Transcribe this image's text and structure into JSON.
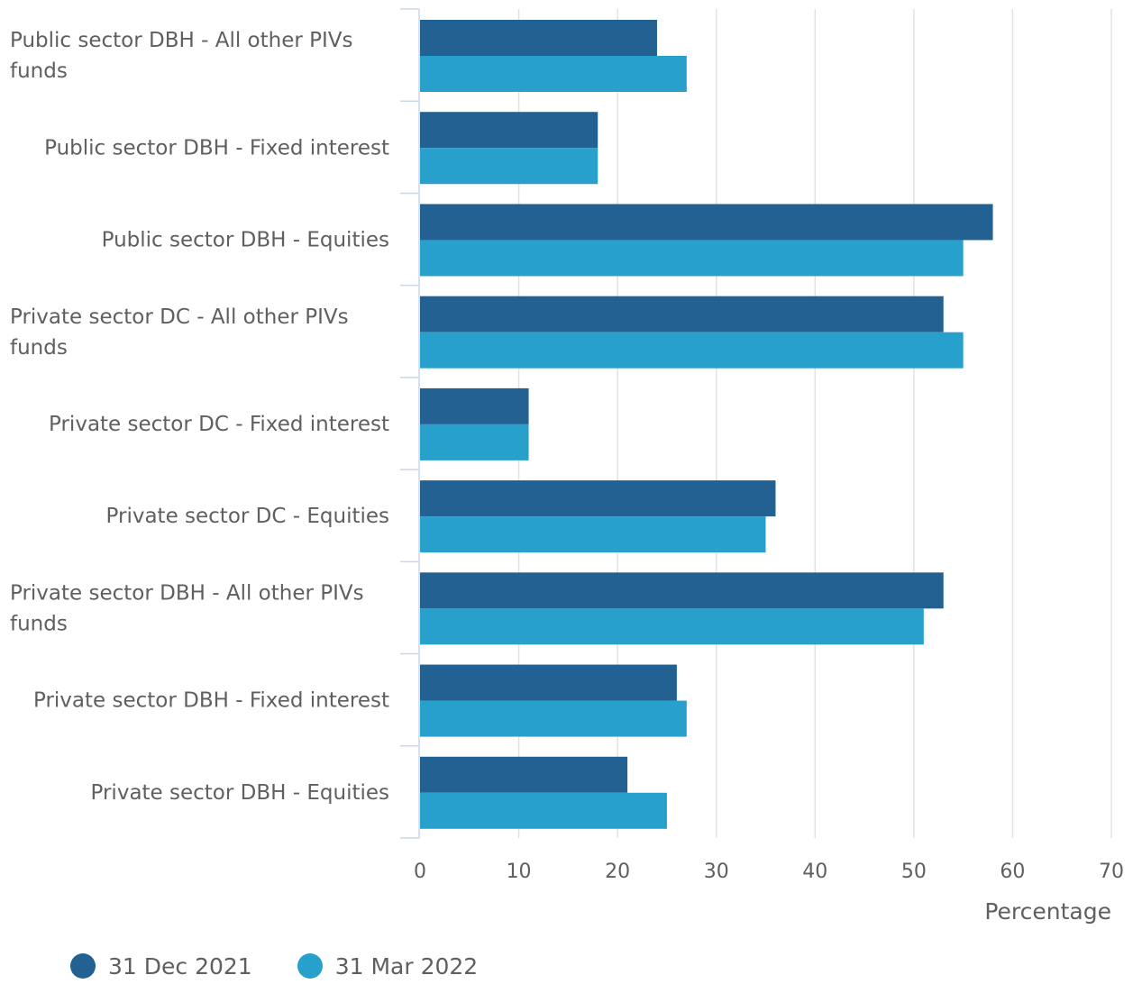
{
  "chart_data": {
    "type": "bar",
    "orientation": "horizontal",
    "categories": [
      "Public sector DBH - All other PIVs funds",
      "Public sector DBH - Fixed interest",
      "Public sector DBH - Equities",
      "Private sector DC - All other PIVs funds",
      "Private sector DC - Fixed interest",
      "Private sector DC - Equities",
      "Private sector DBH - All other PIVs funds",
      "Private sector DBH - Fixed interest",
      "Private sector DBH - Equities"
    ],
    "category_label_lines": [
      [
        "Public sector DBH - All other PIVs",
        "funds"
      ],
      [
        "Public sector DBH - Fixed interest"
      ],
      [
        "Public sector DBH - Equities"
      ],
      [
        "Private sector DC - All other PIVs",
        "funds"
      ],
      [
        "Private sector DC - Fixed interest"
      ],
      [
        "Private sector DC - Equities"
      ],
      [
        "Private sector DBH - All other PIVs",
        "funds"
      ],
      [
        "Private sector DBH - Fixed interest"
      ],
      [
        "Private sector DBH - Equities"
      ]
    ],
    "series": [
      {
        "name": "31 Dec 2021",
        "color": "#236192",
        "values": [
          24,
          18,
          58,
          53,
          11,
          36,
          53,
          26,
          21
        ]
      },
      {
        "name": "31 Mar 2022",
        "color": "#27a0cc",
        "values": [
          27,
          18,
          55,
          55,
          11,
          35,
          51,
          27,
          25
        ]
      }
    ],
    "xlabel": "Percentage",
    "ylabel": "",
    "xlim": [
      0,
      70
    ],
    "xticks": [
      0,
      10,
      20,
      30,
      40,
      50,
      60,
      70
    ],
    "grid": true,
    "legend_position": "bottom-left"
  }
}
